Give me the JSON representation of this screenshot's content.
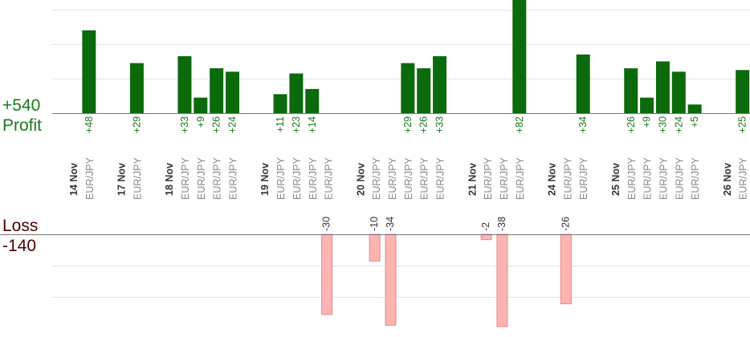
{
  "summary": {
    "profit_total": "+540",
    "profit_label": "Profit",
    "loss_label": "Loss",
    "loss_total": "-140"
  },
  "colors": {
    "profit_bar": "#0b6a0b",
    "profit_text": "#1a7a1a",
    "loss_bar_fill": "#ffb3b3",
    "loss_bar_stroke": "#e58a8a",
    "loss_label": "#4a0000",
    "date_text": "#333333",
    "pair_text": "#888888",
    "gridline": "#e4e4e4",
    "axis_line": "#777777"
  },
  "chart_data": {
    "type": "bar",
    "y_profit_range": [
      0,
      40
    ],
    "y_loss_range": [
      -40,
      0
    ],
    "columns": [
      {
        "kind": "date",
        "label": "14 Nov"
      },
      {
        "kind": "trade",
        "pair": "EUR/JPY",
        "value": 48
      },
      {
        "kind": "gap"
      },
      {
        "kind": "date",
        "label": "17 Nov"
      },
      {
        "kind": "trade",
        "pair": "EUR/JPY",
        "value": 29
      },
      {
        "kind": "gap"
      },
      {
        "kind": "date",
        "label": "18 Nov"
      },
      {
        "kind": "trade",
        "pair": "EUR/JPY",
        "value": 33
      },
      {
        "kind": "trade",
        "pair": "EUR/JPY",
        "value": 9
      },
      {
        "kind": "trade",
        "pair": "EUR/JPY",
        "value": 26
      },
      {
        "kind": "trade",
        "pair": "EUR/JPY",
        "value": 24
      },
      {
        "kind": "gap"
      },
      {
        "kind": "date",
        "label": "19 Nov"
      },
      {
        "kind": "trade",
        "pair": "EUR/JPY",
        "value": 11
      },
      {
        "kind": "trade",
        "pair": "EUR/JPY",
        "value": 23
      },
      {
        "kind": "trade",
        "pair": "EUR/JPY",
        "value": 14
      },
      {
        "kind": "trade",
        "pair": "EUR/JPY",
        "value": -30
      },
      {
        "kind": "gap"
      },
      {
        "kind": "date",
        "label": "20 Nov"
      },
      {
        "kind": "trade",
        "pair": "EUR/JPY",
        "value": -10
      },
      {
        "kind": "trade",
        "pair": "EUR/JPY",
        "value": -34
      },
      {
        "kind": "trade",
        "pair": "EUR/JPY",
        "value": 29
      },
      {
        "kind": "trade",
        "pair": "EUR/JPY",
        "value": 26
      },
      {
        "kind": "trade",
        "pair": "EUR/JPY",
        "value": 33
      },
      {
        "kind": "gap"
      },
      {
        "kind": "date",
        "label": "21 Nov"
      },
      {
        "kind": "trade",
        "pair": "EUR/JPY",
        "value": -2
      },
      {
        "kind": "trade",
        "pair": "EUR/JPY",
        "value": -38
      },
      {
        "kind": "trade",
        "pair": "EUR/JPY",
        "value": 82
      },
      {
        "kind": "gap"
      },
      {
        "kind": "date",
        "label": "24 Nov"
      },
      {
        "kind": "trade",
        "pair": "EUR/JPY",
        "value": -26
      },
      {
        "kind": "trade",
        "pair": "EUR/JPY",
        "value": 34
      },
      {
        "kind": "gap"
      },
      {
        "kind": "date",
        "label": "25 Nov"
      },
      {
        "kind": "trade",
        "pair": "EUR/JPY",
        "value": 26
      },
      {
        "kind": "trade",
        "pair": "EUR/JPY",
        "value": 9
      },
      {
        "kind": "trade",
        "pair": "EUR/JPY",
        "value": 30
      },
      {
        "kind": "trade",
        "pair": "EUR/JPY",
        "value": 24
      },
      {
        "kind": "trade",
        "pair": "EUR/JPY",
        "value": 5
      },
      {
        "kind": "gap"
      },
      {
        "kind": "date",
        "label": "26 Nov"
      },
      {
        "kind": "trade",
        "pair": "EUR/JPY",
        "value": 25
      }
    ]
  }
}
